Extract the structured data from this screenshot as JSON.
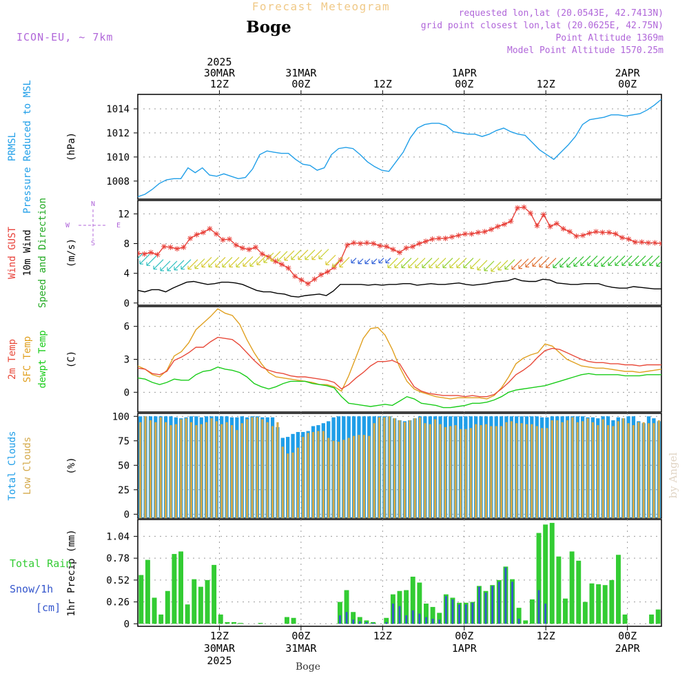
{
  "header": {
    "title": "Forecast Meteogram",
    "station": "Boge",
    "model": "ICON-EU, ~ 7km",
    "requested": "requested lon,lat (20.0543E, 42.7413N)",
    "grid_point": "grid point closest lon,lat (20.0625E, 42.75N)",
    "point_altitude": "Point Altitude 1369m",
    "model_altitude": "Model Point Altitude 1570.25m",
    "footer_station": "Boge",
    "credit": "by Angel"
  },
  "time_axis": {
    "top_labels": [
      {
        "hour": 12,
        "lines": [
          "2025",
          "30MAR",
          "12Z"
        ]
      },
      {
        "hour": 24,
        "lines": [
          "31MAR",
          "00Z"
        ]
      },
      {
        "hour": 36,
        "lines": [
          "12Z"
        ]
      },
      {
        "hour": 48,
        "lines": [
          "1APR",
          "00Z"
        ]
      },
      {
        "hour": 60,
        "lines": [
          "12Z"
        ]
      },
      {
        "hour": 72,
        "lines": [
          "2APR",
          "00Z"
        ]
      }
    ],
    "bottom_labels": [
      {
        "hour": 12,
        "lines": [
          "12Z",
          "30MAR",
          "2025"
        ]
      },
      {
        "hour": 24,
        "lines": [
          "00Z",
          "31MAR"
        ]
      },
      {
        "hour": 36,
        "lines": [
          "12Z"
        ]
      },
      {
        "hour": 48,
        "lines": [
          "00Z",
          "1APR"
        ]
      },
      {
        "hour": 60,
        "lines": [
          "12Z"
        ]
      },
      {
        "hour": 72,
        "lines": [
          "00Z",
          "2APR"
        ]
      }
    ],
    "range": [
      0,
      77
    ]
  },
  "colors": {
    "pressure": "#1f9ee8",
    "gust": "#e8413a",
    "wind": "#000000",
    "dir": "#22aa22",
    "temp2m": "#e84a3a",
    "sfc": "#e0a020",
    "dewpt": "#19cc19",
    "clouds_total": "#1f9ee8",
    "clouds_low": "#d4a94a",
    "rain": "#33cc33",
    "snow": "#3355cc",
    "label_purple": "#b066d9",
    "title_orange": "#f0c987"
  },
  "chart_data": [
    {
      "type": "line",
      "panel": "pressure",
      "side_labels": [
        "PRMSL",
        "Pressure Reduced to MSL"
      ],
      "ylabel": "(hPa)",
      "ylim": [
        1006.5,
        1015.2
      ],
      "yticks": [
        1008,
        1010,
        1012,
        1014
      ],
      "series": [
        {
          "values": [
            1006.7,
            1006.9,
            1007.3,
            1007.8,
            1008.1,
            1008.2,
            1008.2,
            1009.1,
            1008.7,
            1009.1,
            1008.5,
            1008.4,
            1008.6,
            1008.4,
            1008.2,
            1008.3,
            1009.0,
            1010.2,
            1010.5,
            1010.4,
            1010.3,
            1010.3,
            1009.8,
            1009.4,
            1009.3,
            1008.9,
            1009.1,
            1010.2,
            1010.7,
            1010.8,
            1010.7,
            1010.2,
            1009.6,
            1009.2,
            1008.9,
            1008.8,
            1009.6,
            1010.4,
            1011.6,
            1012.4,
            1012.7,
            1012.8,
            1012.8,
            1012.6,
            1012.1,
            1012.0,
            1011.9,
            1011.9,
            1011.7,
            1011.9,
            1012.2,
            1012.4,
            1012.1,
            1011.9,
            1011.8,
            1011.2,
            1010.6,
            1010.2,
            1009.8,
            1010.4,
            1011.0,
            1011.7,
            1012.7,
            1013.1,
            1013.2,
            1013.3,
            1013.5,
            1013.5,
            1013.4,
            1013.5,
            1013.6,
            1013.9,
            1014.3,
            1014.8
          ]
        }
      ]
    },
    {
      "type": "line",
      "panel": "wind",
      "side_labels": [
        "Wind GUST",
        "10m Wind",
        "Speed and Direction"
      ],
      "ylabel": "(m/s)",
      "compass": {
        "n": "N",
        "s": "S",
        "w": "W",
        "e": "E"
      },
      "ylim": [
        -0.3,
        13.8
      ],
      "yticks": [
        0,
        4,
        8,
        12
      ],
      "series": [
        {
          "values": [
            6.7,
            6.6,
            6.8,
            6.5,
            7.6,
            7.5,
            7.3,
            7.5,
            8.7,
            9.2,
            9.5,
            10.0,
            9.3,
            8.5,
            8.6,
            7.8,
            7.4,
            7.2,
            7.5,
            6.6,
            6.2,
            5.6,
            5.2,
            4.7,
            3.6,
            3.1,
            2.6,
            3.2,
            3.8,
            4.2,
            4.8,
            5.8,
            7.8,
            8.1,
            8.0,
            8.1,
            8.0,
            7.7,
            7.6,
            7.2,
            6.8,
            7.4,
            7.6,
            8.0,
            8.3,
            8.6,
            8.7,
            8.7,
            8.9,
            9.1,
            9.3,
            9.3,
            9.5,
            9.6,
            9.9,
            10.3,
            10.6,
            11.0,
            12.8,
            12.9,
            12.1,
            10.4,
            11.9,
            10.3,
            10.7,
            10.0,
            9.6,
            9.0,
            9.1,
            9.4,
            9.6,
            9.5,
            9.5,
            9.3,
            8.8,
            8.6,
            8.2,
            8.2,
            8.1,
            8.1,
            8.0
          ]
        },
        {
          "values": [
            1.7,
            1.5,
            1.8,
            1.8,
            1.5,
            2.0,
            2.4,
            2.8,
            2.9,
            2.7,
            2.5,
            2.6,
            2.8,
            2.8,
            2.7,
            2.5,
            2.1,
            1.7,
            1.5,
            1.5,
            1.3,
            1.2,
            0.9,
            0.8,
            1.0,
            1.1,
            1.2,
            1.0,
            1.6,
            2.5,
            2.5,
            2.5,
            2.5,
            2.4,
            2.5,
            2.4,
            2.5,
            2.5,
            2.6,
            2.6,
            2.4,
            2.5,
            2.6,
            2.5,
            2.5,
            2.6,
            2.7,
            2.5,
            2.4,
            2.5,
            2.6,
            2.8,
            2.9,
            3.0,
            3.3,
            3.0,
            2.9,
            2.9,
            3.2,
            3.1,
            2.7,
            2.6,
            2.5,
            2.5,
            2.6,
            2.6,
            2.6,
            2.3,
            2.1,
            2.0,
            2.0,
            2.2,
            2.1,
            2.0,
            1.9,
            1.9
          ]
        },
        {
          "values": [
            6.0,
            5.9,
            5.7,
            5.2,
            5.0,
            5.0,
            5.1,
            5.2,
            5.2,
            5.3,
            5.5,
            5.5,
            5.5,
            5.5,
            5.5,
            5.5,
            5.6,
            5.6,
            5.8,
            6.1,
            6.3,
            6.3,
            6.4,
            6.5,
            6.5,
            6.5,
            6.5,
            6.6,
            5.8,
            5.5,
            5.5,
            5.4,
            5.3,
            5.3,
            5.3,
            5.4,
            5.4,
            5.4,
            5.4,
            5.4,
            5.4,
            5.4,
            5.4,
            5.4,
            5.4,
            5.4,
            5.4,
            5.4,
            5.4,
            5.3,
            5.1,
            5.0,
            4.9,
            5.1,
            5.2,
            5.2,
            5.3,
            5.5,
            5.6,
            5.5,
            5.4,
            5.4,
            5.5,
            5.5,
            5.6,
            5.7,
            5.7,
            5.6,
            5.6,
            5.7,
            5.7,
            5.7,
            5.7,
            5.7,
            5.7,
            5.7,
            5.6
          ]
        }
      ]
    },
    {
      "type": "line",
      "panel": "temperature",
      "side_labels": [
        "2m Temp",
        "SFC Temp",
        "dewpt Temp"
      ],
      "ylabel": "(C)",
      "ylim": [
        -1.8,
        7.8
      ],
      "yticks": [
        0,
        3,
        6
      ],
      "series": [
        {
          "values": [
            2.2,
            2.1,
            1.7,
            1.6,
            1.9,
            2.9,
            3.2,
            3.6,
            4.1,
            4.1,
            4.6,
            5.0,
            4.9,
            4.8,
            4.3,
            3.6,
            2.9,
            2.3,
            2.0,
            1.8,
            1.7,
            1.5,
            1.4,
            1.4,
            1.3,
            1.2,
            1.1,
            0.9,
            0.3,
            0.7,
            1.3,
            1.8,
            2.4,
            2.8,
            2.8,
            2.9,
            2.6,
            1.5,
            0.5,
            0.1,
            -0.1,
            -0.2,
            -0.3,
            -0.3,
            -0.3,
            -0.4,
            -0.3,
            -0.4,
            -0.4,
            -0.2,
            0.3,
            0.9,
            1.6,
            2.0,
            2.5,
            3.2,
            3.8,
            4.0,
            3.9,
            3.6,
            3.3,
            3.0,
            2.8,
            2.7,
            2.7,
            2.6,
            2.6,
            2.5,
            2.5,
            2.4,
            2.5,
            2.5,
            2.5
          ]
        },
        {
          "values": [
            2.4,
            2.1,
            1.6,
            1.4,
            2.0,
            3.3,
            3.7,
            4.5,
            5.7,
            6.3,
            6.9,
            7.6,
            7.2,
            7.0,
            6.2,
            4.8,
            3.6,
            2.6,
            1.8,
            1.4,
            1.3,
            1.2,
            1.1,
            1.0,
            0.9,
            0.7,
            0.7,
            0.5,
            0.1,
            1.5,
            3.2,
            4.9,
            5.8,
            5.9,
            5.2,
            3.9,
            2.3,
            1.0,
            0.3,
            0.0,
            -0.2,
            -0.4,
            -0.5,
            -0.6,
            -0.5,
            -0.5,
            -0.5,
            -0.5,
            -0.6,
            -0.3,
            0.4,
            1.4,
            2.6,
            3.1,
            3.4,
            3.6,
            4.4,
            4.2,
            3.6,
            3.0,
            2.7,
            2.4,
            2.3,
            2.2,
            2.2,
            2.1,
            2.0,
            1.9,
            1.9,
            1.8,
            1.9,
            2.0,
            2.1
          ]
        },
        {
          "values": [
            1.3,
            1.2,
            0.9,
            0.7,
            0.9,
            1.2,
            1.1,
            1.1,
            1.6,
            1.9,
            2.0,
            2.3,
            2.1,
            2.0,
            1.8,
            1.4,
            0.8,
            0.5,
            0.3,
            0.5,
            0.8,
            1.0,
            1.0,
            1.0,
            0.8,
            0.7,
            0.6,
            0.4,
            -0.4,
            -1.0,
            -1.1,
            -1.2,
            -1.3,
            -1.2,
            -1.1,
            -1.2,
            -0.8,
            -0.4,
            -0.6,
            -1.0,
            -1.1,
            -1.2,
            -1.4,
            -1.4,
            -1.3,
            -1.2,
            -1.0,
            -1.0,
            -0.9,
            -0.7,
            -0.4,
            0.0,
            0.2,
            0.3,
            0.4,
            0.5,
            0.6,
            0.8,
            1.0,
            1.2,
            1.4,
            1.6,
            1.7,
            1.6,
            1.6,
            1.6,
            1.6,
            1.5,
            1.5,
            1.5,
            1.6,
            1.6,
            1.6
          ]
        }
      ]
    },
    {
      "type": "bar",
      "panel": "clouds",
      "side_labels": [
        "Total Clouds",
        "Low Clouds"
      ],
      "ylabel": "(%)",
      "ylim": [
        -4,
        103
      ],
      "yticks": [
        0,
        25,
        50,
        75,
        100
      ],
      "series": [
        {
          "values": [
            100,
            100,
            100,
            100,
            100,
            100,
            100,
            99,
            98,
            99,
            100,
            100,
            99,
            100,
            100,
            100,
            100,
            100,
            99,
            99,
            100,
            99,
            100,
            100,
            99,
            99,
            99,
            89,
            78,
            79,
            82,
            84,
            84,
            85,
            90,
            91,
            93,
            95,
            99,
            100,
            100,
            100,
            100,
            100,
            100,
            100,
            100,
            100,
            100,
            100,
            98,
            96,
            95,
            96,
            98,
            100,
            100,
            100,
            100,
            100,
            100,
            100,
            100,
            100,
            100,
            100,
            100,
            100,
            100,
            100,
            100,
            100,
            100,
            100,
            100,
            100,
            100,
            100,
            100,
            99,
            99,
            100,
            100,
            100,
            100,
            100,
            100,
            100,
            99,
            99,
            98,
            100,
            100,
            96,
            99,
            98,
            100,
            100,
            95,
            93,
            100,
            98,
            95
          ]
        },
        {
          "values": [
            94,
            100,
            96,
            94,
            99,
            94,
            91,
            92,
            97,
            98,
            94,
            91,
            92,
            94,
            98,
            95,
            92,
            94,
            91,
            86,
            93,
            97,
            99,
            99,
            97,
            94,
            90,
            94,
            69,
            62,
            63,
            68,
            79,
            83,
            84,
            85,
            85,
            78,
            75,
            74,
            76,
            78,
            80,
            81,
            81,
            80,
            93,
            99,
            99,
            100,
            98,
            96,
            94,
            96,
            98,
            99,
            93,
            92,
            97,
            92,
            89,
            90,
            91,
            87,
            87,
            88,
            92,
            91,
            92,
            90,
            90,
            90,
            94,
            95,
            93,
            93,
            92,
            92,
            90,
            88,
            88,
            96,
            96,
            94,
            96,
            99,
            94,
            95,
            98,
            94,
            91,
            97,
            91,
            90,
            95,
            98,
            93,
            91,
            94,
            94,
            93,
            93,
            96
          ]
        }
      ]
    },
    {
      "type": "bar",
      "panel": "precip",
      "side_labels": [
        "Total Rain",
        "Snow/1h",
        "[cm]"
      ],
      "ylabel": "1hr Precip (mm)",
      "ylim": [
        -0.03,
        1.24
      ],
      "yticks": [
        0,
        0.26,
        0.52,
        0.78,
        1.04
      ],
      "series": [
        {
          "values": [
            0.58,
            0.76,
            0.31,
            0.11,
            0.39,
            0.83,
            0.86,
            0.23,
            0.53,
            0.44,
            0.52,
            0.7,
            0.11,
            0.02,
            0.02,
            0.01,
            0.0,
            0.0,
            0.01,
            0.0,
            0.0,
            0.0,
            0.08,
            0.07,
            0.0,
            0.0,
            0.0,
            0.0,
            0.0,
            0.0,
            0.26,
            0.4,
            0.14,
            0.08,
            0.04,
            0.02,
            0.0,
            0.07,
            0.35,
            0.39,
            0.4,
            0.56,
            0.49,
            0.24,
            0.2,
            0.13,
            0.35,
            0.31,
            0.25,
            0.25,
            0.26,
            0.45,
            0.39,
            0.46,
            0.52,
            0.68,
            0.53,
            0.19,
            0.04,
            0.29,
            1.08,
            1.18,
            1.2,
            0.8,
            0.3,
            0.86,
            0.75,
            0.26,
            0.48,
            0.47,
            0.46,
            0.52,
            0.82,
            0.11,
            0.0,
            0.0,
            0.0,
            0.11,
            0.17
          ]
        },
        {
          "values": [
            0.0,
            0.0,
            0.0,
            0.0,
            0.0,
            0.0,
            0.0,
            0.0,
            0.0,
            0.0,
            0.0,
            0.0,
            0.0,
            0.0,
            0.0,
            0.0,
            0.0,
            0.0,
            0.0,
            0.0,
            0.0,
            0.0,
            0.0,
            0.0,
            0.0,
            0.0,
            0.0,
            0.0,
            0.0,
            0.0,
            0.1,
            0.14,
            0.05,
            0.03,
            0.02,
            0.01,
            0.0,
            0.02,
            0.24,
            0.21,
            0.1,
            0.16,
            0.12,
            0.08,
            0.06,
            0.05,
            0.33,
            0.29,
            0.23,
            0.23,
            0.25,
            0.44,
            0.37,
            0.45,
            0.5,
            0.67,
            0.5,
            0.06,
            0.0,
            0.0,
            0.4,
            0.24,
            0.0,
            0.0,
            0.0,
            0.0,
            0.0,
            0.0,
            0.0,
            0.0,
            0.0,
            0.0,
            0.0,
            0.0,
            0.0,
            0.0,
            0.0,
            0.0,
            0.0
          ]
        }
      ]
    }
  ]
}
